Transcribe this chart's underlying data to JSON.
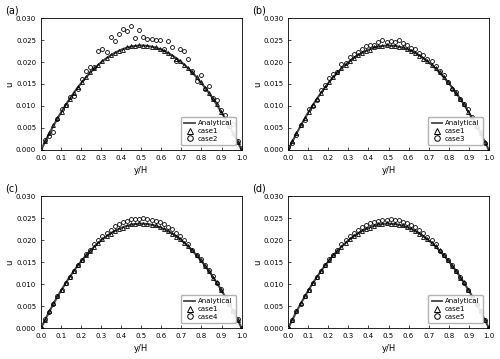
{
  "subplots": [
    {
      "label": "(a)",
      "case_name": "case2"
    },
    {
      "label": "(b)",
      "case_name": "case3"
    },
    {
      "label": "(c)",
      "case_name": "case4"
    },
    {
      "label": "(d)",
      "case_name": "case5"
    }
  ],
  "xlabel": "y/H",
  "ylabel": "u",
  "xlim": [
    0.0,
    1.0
  ],
  "ylim": [
    0.0,
    0.03
  ],
  "yticks": [
    0.0,
    0.005,
    0.01,
    0.015,
    0.02,
    0.025,
    0.03
  ],
  "xticks": [
    0.0,
    0.1,
    0.2,
    0.3,
    0.4,
    0.5,
    0.6,
    0.7,
    0.8,
    0.9,
    1.0
  ],
  "analytical_color": "#444444",
  "case1_color": "#000000",
  "case_other_color": "#000000",
  "u_max_analytical": 0.02375,
  "background_color": "#ffffff",
  "figure_facecolor": "#ffffff"
}
